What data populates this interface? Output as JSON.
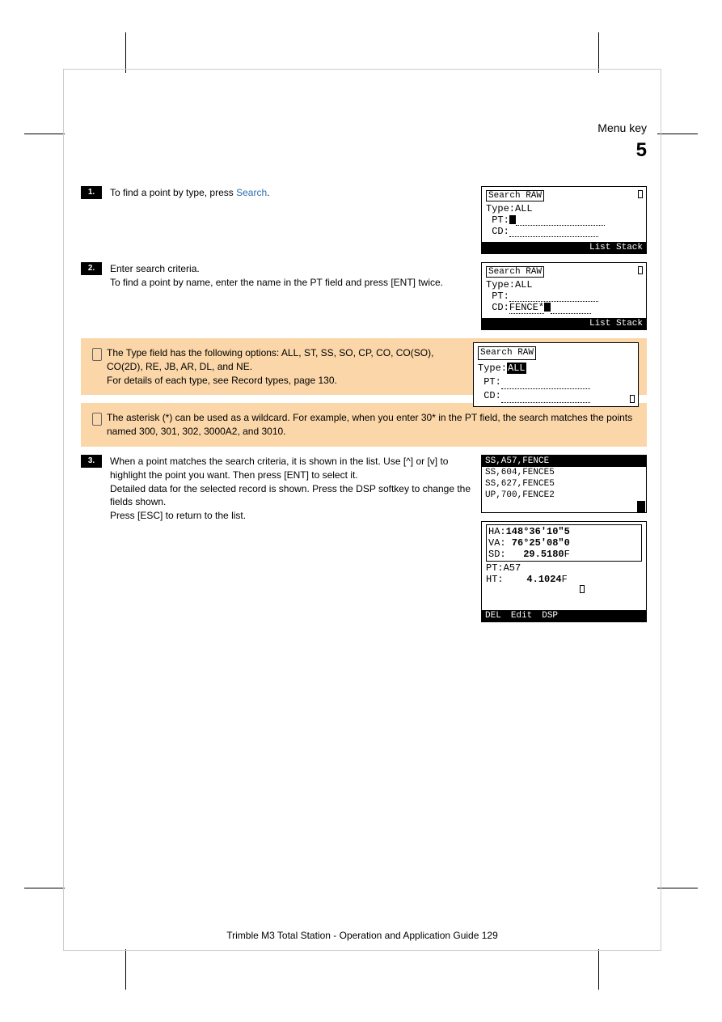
{
  "header": {
    "title": "Menu key",
    "chapter": "5"
  },
  "step1": {
    "num": "1.",
    "text_a": "To find a point by type, press",
    "softkey": "Search",
    "text_b": "."
  },
  "step2": {
    "num": "2.",
    "text": "Enter search criteria.\nTo find a point by name, enter the name in the PT field and press [ENT] twice."
  },
  "tip1": {
    "text": "The Type field has the following options: ALL, ST, SS, SO, CP, CO, CO(SO), CO(2D), RE, JB, AR, DL, and NE.\nFor details of each type, see Record types, page 130."
  },
  "tip2": {
    "text": "The asterisk (*) can be used as a wildcard. For example, when you enter 30* in the PT field, the search matches the points named 300, 301, 302, 3000A2, and 3010."
  },
  "step3": {
    "num": "3.",
    "text": "When a point matches the search criteria, it is shown in the list. Use [^] or [v] to highlight the point you want. Then press [ENT] to select it.\nDetailed data for the selected record is shown. Press the DSP softkey to change the fields shown.\nPress [ESC] to return to the list."
  },
  "lcd1": {
    "title": "Search RAW",
    "type_label": "Type:",
    "type_val": "ALL",
    "pt_label": " PT:",
    "cd_label": " CD:",
    "footer": "List Stack"
  },
  "lcd2": {
    "title": "Search RAW",
    "type_label": "Type:",
    "type_val": "ALL",
    "pt_label": " PT:",
    "cd_label": " CD:",
    "cd_val": "FENCE*",
    "footer": "List Stack"
  },
  "lcd3": {
    "title": "Search RAW",
    "type_label": "Type:",
    "type_val_hl": "ALL",
    "pt_label": " PT:",
    "cd_label": " CD:"
  },
  "results": {
    "rows": [
      {
        "txt": "SS,A57,FENCE",
        "sel": true
      },
      {
        "txt": "SS,604,FENCE5",
        "sel": false
      },
      {
        "txt": "SS,627,FENCE5",
        "sel": false
      },
      {
        "txt": "UP,700,FENCE2",
        "sel": false
      }
    ]
  },
  "detail": {
    "ha_label": "HA:",
    "ha_val": "148°36'10\"5",
    "va_label": "VA:",
    "va_val": " 76°25'08\"0",
    "sd_label": "SD:",
    "sd_val": "   29.5180",
    "sd_unit": "F",
    "pt_label": "PT:",
    "pt_val": "A57",
    "ht_label": "HT:",
    "ht_val": "    4.1024",
    "ht_unit": "F",
    "footer": [
      "DEL",
      "Edit",
      "DSP"
    ]
  },
  "footer_text": "Trimble M3 Total Station - Operation and Application Guide   129"
}
